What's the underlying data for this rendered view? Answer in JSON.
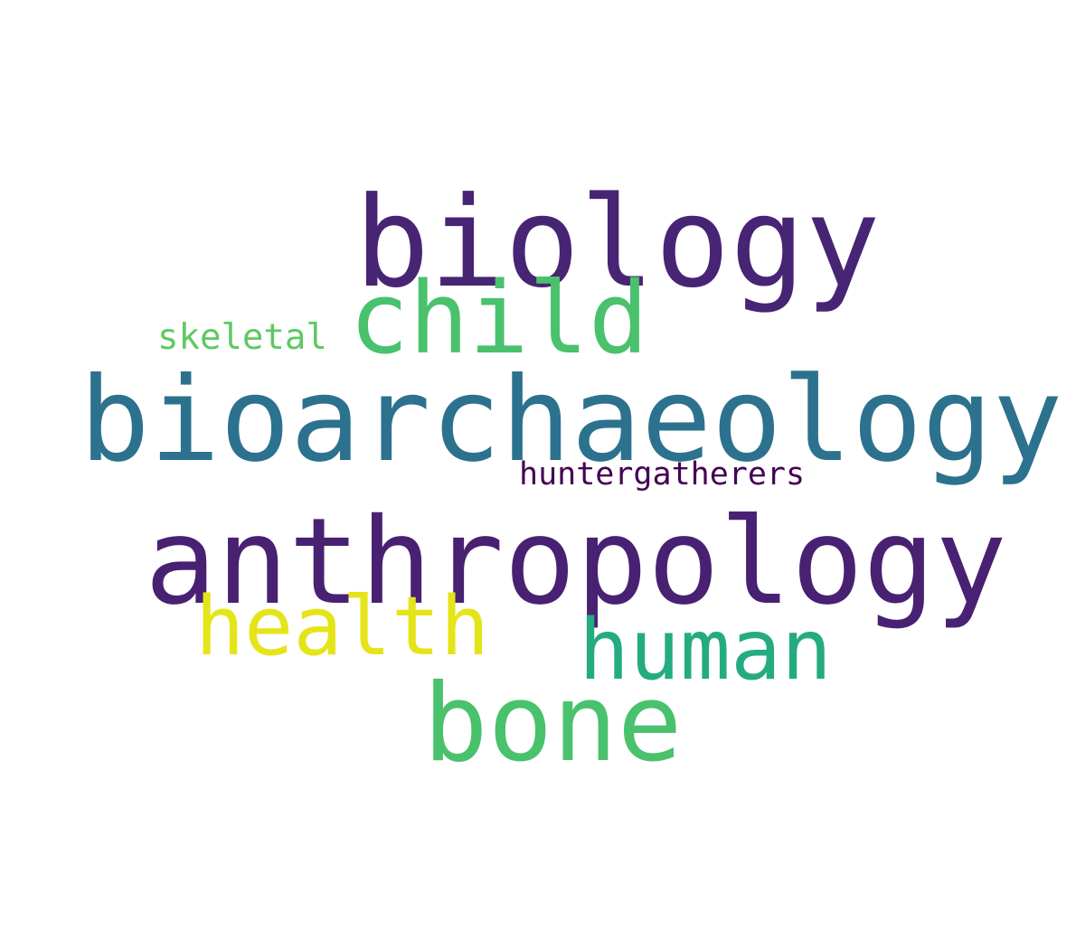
{
  "word_cloud": {
    "words": [
      {
        "text": "biology",
        "color": "#482475"
      },
      {
        "text": "child",
        "color": "#4ac16d"
      },
      {
        "text": "skeletal",
        "color": "#5ec962"
      },
      {
        "text": "bioarchaeology",
        "color": "#2c728e"
      },
      {
        "text": "huntergatherers",
        "color": "#440154"
      },
      {
        "text": "anthropology",
        "color": "#482173"
      },
      {
        "text": "health",
        "color": "#e5e419"
      },
      {
        "text": "human",
        "color": "#25ab82"
      },
      {
        "text": "bone",
        "color": "#4ac16d"
      }
    ]
  }
}
